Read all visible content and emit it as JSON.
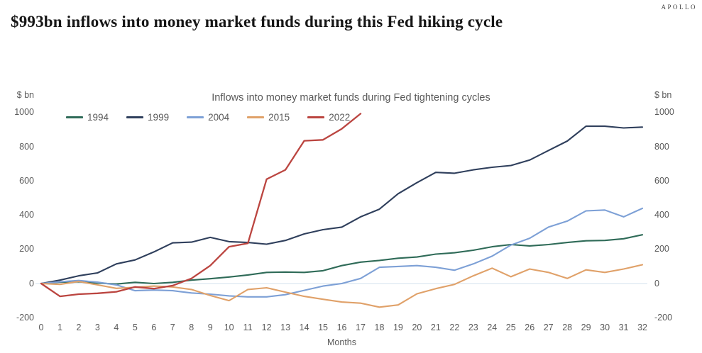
{
  "brand": {
    "logo": "APOLLO"
  },
  "header": {
    "title": "$993bn inflows into money market funds during this Fed hiking cycle"
  },
  "chart_data": {
    "type": "line",
    "title": "Inflows into money market funds during Fed tightening cycles",
    "xlabel": "Months",
    "y_axis_unit": "$ bn",
    "categories": [
      0,
      1,
      2,
      3,
      4,
      5,
      6,
      7,
      8,
      9,
      10,
      11,
      12,
      13,
      14,
      15,
      16,
      17,
      18,
      19,
      20,
      21,
      22,
      23,
      24,
      25,
      26,
      27,
      28,
      29,
      30,
      31,
      32
    ],
    "yticks": [
      1000,
      800,
      600,
      400,
      200,
      0,
      -200
    ],
    "ylim": [
      -200,
      1000
    ],
    "grid": "zero-line-only",
    "legend_position": "top-left",
    "zero_line_color": "#dce6f0",
    "axis_text_color": "#595959",
    "series": [
      {
        "name": "1994",
        "color": "#2f6b58",
        "width": 2.1,
        "values": [
          0,
          8,
          10,
          3,
          -3,
          7,
          0,
          7,
          20,
          28,
          38,
          50,
          65,
          67,
          65,
          75,
          105,
          125,
          135,
          148,
          155,
          172,
          180,
          195,
          215,
          228,
          220,
          228,
          240,
          250,
          252,
          262,
          285
        ]
      },
      {
        "name": "1999",
        "color": "#2f3f5c",
        "width": 2.1,
        "values": [
          0,
          20,
          45,
          62,
          115,
          138,
          185,
          238,
          242,
          270,
          245,
          240,
          230,
          252,
          290,
          315,
          330,
          390,
          435,
          525,
          590,
          650,
          645,
          665,
          680,
          690,
          722,
          778,
          833,
          920,
          920,
          910,
          915
        ]
      },
      {
        "name": "2004",
        "color": "#7da0d6",
        "width": 2.1,
        "values": [
          0,
          10,
          18,
          8,
          -8,
          -42,
          -38,
          -42,
          -55,
          -62,
          -72,
          -78,
          -78,
          -65,
          -40,
          -15,
          0,
          30,
          95,
          100,
          105,
          95,
          78,
          115,
          160,
          225,
          265,
          330,
          365,
          425,
          430,
          390,
          440
        ]
      },
      {
        "name": "2015",
        "color": "#e0a169",
        "width": 2.1,
        "values": [
          0,
          -5,
          12,
          -8,
          -28,
          -22,
          -15,
          -20,
          -35,
          -70,
          -100,
          -35,
          -25,
          -50,
          -75,
          -92,
          -108,
          -115,
          -138,
          -125,
          -60,
          -30,
          -5,
          45,
          90,
          40,
          85,
          65,
          30,
          80,
          65,
          85,
          110
        ]
      },
      {
        "name": "2022",
        "color": "#bb4540",
        "width": 2.3,
        "values": [
          0,
          -75,
          -62,
          -57,
          -48,
          -20,
          -30,
          -12,
          30,
          105,
          215,
          235,
          610,
          665,
          835,
          840,
          905,
          993
        ]
      }
    ]
  }
}
